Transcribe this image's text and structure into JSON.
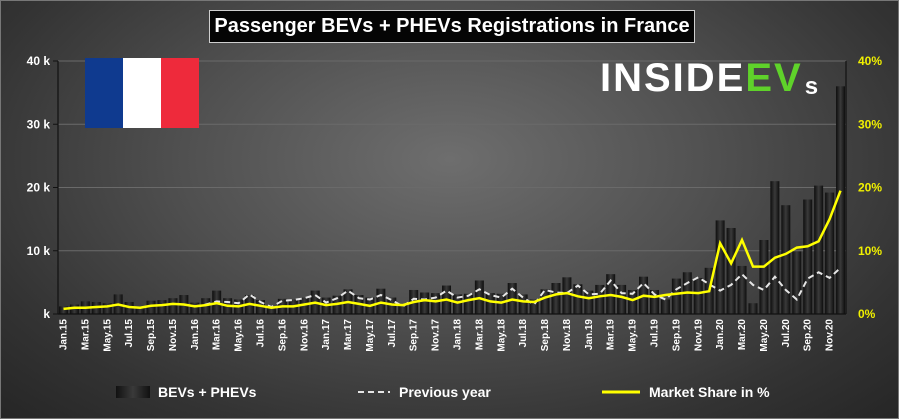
{
  "title": "Passenger BEVs + PHEVs Registrations in France",
  "logo": {
    "text_main": "INSIDE",
    "text_ev": "EV",
    "text_s": "s"
  },
  "flag_colors": [
    "#0f3a8f",
    "#ffffff",
    "#ee2a3b"
  ],
  "colors": {
    "bars": "#1a1a1a",
    "bar_highlight": "#3a3a3a",
    "previous_year": "#e6e6e6",
    "market_share": "#ffff00",
    "right_axis_text": "#f0f000"
  },
  "chart_data": {
    "type": "bar",
    "title": "Passenger BEVs + PHEVs Registrations in France",
    "categories": [
      "Jan.15",
      "Feb.15",
      "Mar.15",
      "Apr.15",
      "May.15",
      "Jun.15",
      "Jul.15",
      "Aug.15",
      "Sep.15",
      "Oct.15",
      "Nov.15",
      "Dec.15",
      "Jan.16",
      "Feb.16",
      "Mar.16",
      "Apr.16",
      "May.16",
      "Jun.16",
      "Jul.16",
      "Aug.16",
      "Sep.16",
      "Oct.16",
      "Nov.16",
      "Dec.16",
      "Jan.17",
      "Feb.17",
      "Mar.17",
      "Apr.17",
      "May.17",
      "Jun.17",
      "Jul.17",
      "Aug.17",
      "Sep.17",
      "Oct.17",
      "Nov.17",
      "Dec.17",
      "Jan.18",
      "Feb.18",
      "Mar.18",
      "Apr.18",
      "May.18",
      "Jun.18",
      "Jul.18",
      "Aug.18",
      "Sep.18",
      "Oct.18",
      "Nov.18",
      "Dec.18",
      "Jan.19",
      "Feb.19",
      "Mar.19",
      "Apr.19",
      "May.19",
      "Jun.19",
      "Jul.19",
      "Aug.19",
      "Sep.19",
      "Oct.19",
      "Nov.19",
      "Dec.19",
      "Jan.20",
      "Feb.20",
      "Mar.20",
      "Apr.20",
      "May.20",
      "Jun.20",
      "Jul.20",
      "Aug.20",
      "Sep.20",
      "Oct.20",
      "Nov.20",
      "Dec.20"
    ],
    "x_tick_labels": [
      "Jan.15",
      "Mar.15",
      "May.15",
      "Jul.15",
      "Sep.15",
      "Nov.15",
      "Jan.16",
      "Mar.16",
      "May.16",
      "Jul.16",
      "Sep.16",
      "Nov.16",
      "Jan.17",
      "Mar.17",
      "May.17",
      "Jul.17",
      "Sep.17",
      "Nov.17",
      "Jan.18",
      "Mar.18",
      "May.18",
      "Jul.18",
      "Sep.18",
      "Nov.18",
      "Jan.19",
      "Mar.19",
      "May.19",
      "Jul.19",
      "Sep.19",
      "Nov.19",
      "Jan.20",
      "Mar.20",
      "May.20",
      "Jul.20",
      "Sep.20",
      "Nov.20"
    ],
    "series": [
      {
        "name": "BEVs + PHEVs",
        "kind": "bar",
        "axis": "left",
        "values": [
          1200,
          1500,
          2000,
          1900,
          1700,
          3100,
          1900,
          1100,
          2100,
          2200,
          2500,
          3000,
          1800,
          2500,
          3700,
          2500,
          2300,
          3000,
          2200,
          1200,
          2400,
          2300,
          2600,
          3700,
          2600,
          2900,
          3900,
          3000,
          2600,
          4000,
          2600,
          1500,
          3800,
          3400,
          3300,
          4500,
          3100,
          3200,
          5300,
          3300,
          3200,
          4900,
          3100,
          2300,
          3900,
          4900,
          5800,
          4700,
          3700,
          4600,
          6300,
          4600,
          3800,
          5900,
          3800,
          2300,
          5600,
          6600,
          5700,
          7300,
          14800,
          13600,
          7600,
          1700,
          11700,
          21000,
          17200,
          9900,
          18100,
          20300,
          19200,
          36000
        ]
      },
      {
        "name": "Previous year",
        "kind": "line",
        "axis": "left",
        "values": [
          null,
          null,
          null,
          null,
          null,
          null,
          null,
          null,
          null,
          null,
          null,
          null,
          1200,
          1500,
          2000,
          1900,
          1700,
          3100,
          1900,
          1100,
          2100,
          2200,
          2500,
          3000,
          1800,
          2500,
          3700,
          2500,
          2300,
          3000,
          2200,
          1200,
          2400,
          2300,
          2600,
          3700,
          2600,
          2900,
          3900,
          3000,
          2600,
          4000,
          2600,
          1500,
          3800,
          3400,
          3300,
          4500,
          3100,
          3200,
          5300,
          3300,
          3200,
          4900,
          3100,
          2300,
          3900,
          4900,
          5800,
          4700,
          3700,
          4600,
          6300,
          4600,
          3800,
          5900,
          3800,
          2300,
          5600,
          6600,
          5700,
          7300
        ]
      },
      {
        "name": "Market Share in %",
        "kind": "line",
        "axis": "right",
        "values": [
          0.8,
          1.0,
          1.0,
          1.1,
          1.2,
          1.5,
          1.1,
          1.0,
          1.3,
          1.4,
          1.6,
          1.5,
          1.2,
          1.4,
          1.7,
          1.3,
          1.2,
          1.6,
          1.3,
          1.0,
          1.2,
          1.2,
          1.5,
          1.8,
          1.4,
          1.6,
          1.9,
          1.6,
          1.3,
          1.8,
          1.5,
          1.4,
          1.9,
          2.2,
          2.0,
          2.3,
          1.8,
          2.2,
          2.5,
          2.0,
          1.8,
          2.3,
          2.0,
          1.9,
          2.6,
          3.1,
          3.3,
          2.8,
          2.5,
          2.8,
          3.0,
          2.7,
          2.2,
          2.9,
          2.7,
          3.0,
          3.2,
          3.4,
          3.3,
          3.6,
          11.2,
          8.0,
          11.7,
          7.5,
          7.5,
          8.9,
          9.5,
          10.5,
          10.7,
          11.5,
          15.0,
          19.5
        ]
      }
    ],
    "y_left": {
      "ticks": [
        "k",
        "10 k",
        "20 k",
        "30 k",
        "40 k"
      ],
      "range": [
        0,
        40000
      ]
    },
    "y_right": {
      "ticks": [
        "0%",
        "10%",
        "20%",
        "30%",
        "40%"
      ],
      "range": [
        0,
        40
      ]
    },
    "grid": true,
    "legend_position": "bottom"
  },
  "legend": {
    "bars": "BEVs + PHEVs",
    "prev": "Previous year",
    "share": "Market Share in %"
  }
}
